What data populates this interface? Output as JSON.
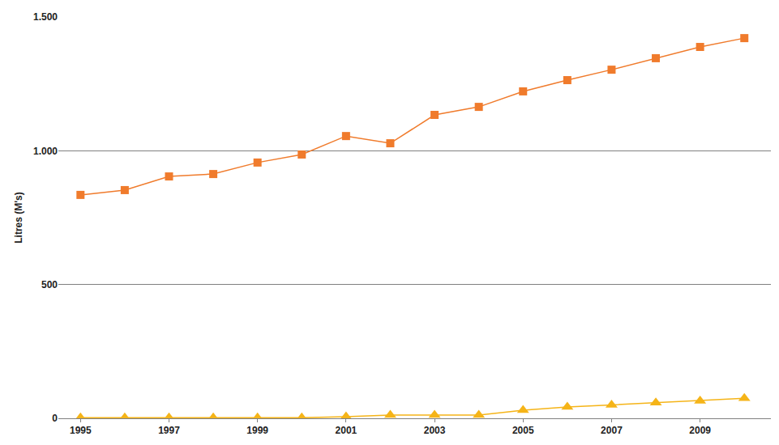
{
  "chart_data": {
    "type": "line",
    "y_label": "Litres (M's)",
    "x": [
      1995,
      1996,
      1997,
      1998,
      1999,
      2000,
      2001,
      2002,
      2003,
      2004,
      2005,
      2006,
      2007,
      2008,
      2009,
      2010
    ],
    "series": [
      {
        "color": "#f07b2c",
        "marker": "square",
        "values": [
          835,
          853,
          904,
          913,
          956,
          986,
          1055,
          1028,
          1134,
          1164,
          1222,
          1264,
          1303,
          1346,
          1388,
          1421
        ]
      },
      {
        "color": "#f5b418",
        "marker": "triangle",
        "values": [
          2,
          2,
          2,
          2,
          2,
          2,
          6,
          12,
          12,
          12,
          30,
          42,
          50,
          58,
          65,
          75
        ]
      }
    ],
    "xlim": [
      1994.5,
      2010.6
    ],
    "xticks": [
      1995,
      1997,
      1999,
      2001,
      2003,
      2005,
      2007,
      2009
    ],
    "ylim": [
      0,
      1500
    ],
    "yticks": [
      0,
      500,
      {
        "value": 1000,
        "label": "1.000"
      },
      {
        "value": 1500,
        "label": "1.500"
      }
    ],
    "grid": true
  }
}
